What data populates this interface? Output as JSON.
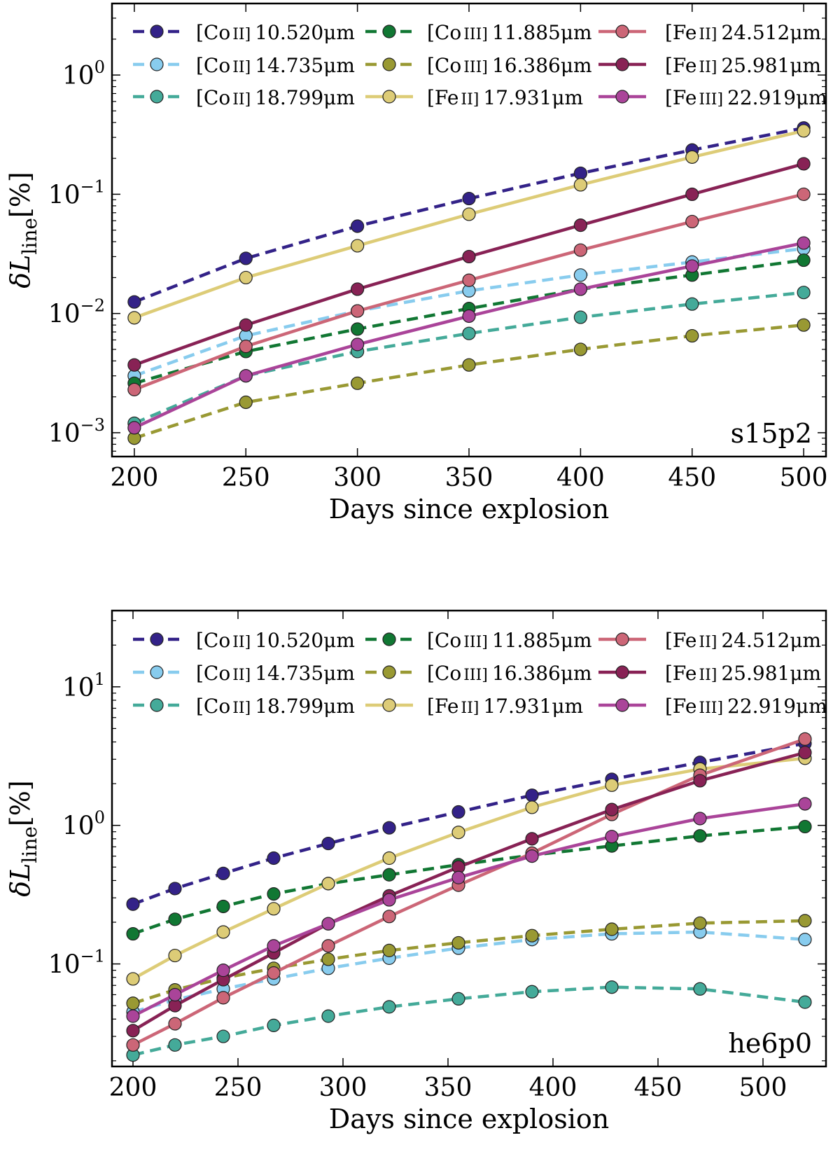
{
  "chart_data": [
    {
      "type": "line",
      "panel_label": "s15p2",
      "xlabel": "Days since explosion",
      "ylabel": {
        "main": "δL",
        "sub": "line",
        "unit": "[%]"
      },
      "xlim": [
        190,
        510
      ],
      "ylim_log10": [
        -3.2,
        0.6
      ],
      "yscale": "log",
      "x_ticks": [
        200,
        250,
        300,
        350,
        400,
        450,
        500
      ],
      "y_ticks_exp": [
        "−3",
        "−2",
        "−1",
        "0"
      ],
      "y_tick_values_log10": [
        -3,
        -2,
        -1,
        0
      ],
      "y_tick_base": "10",
      "legend_loc": "upper",
      "x": [
        200,
        250,
        300,
        350,
        400,
        450,
        500
      ],
      "series": [
        {
          "name": "[Co II] 10.520μm",
          "ion": "[Co",
          "stage": "II]",
          "wave": "10.520μm",
          "color": "#332288",
          "dashed": true,
          "values": [
            0.0125,
            0.029,
            0.054,
            0.092,
            0.15,
            0.235,
            0.36
          ]
        },
        {
          "name": "[Co II] 14.735μm",
          "ion": "[Co",
          "stage": "II]",
          "wave": "14.735μm",
          "color": "#88CCEE",
          "dashed": true,
          "values": [
            0.003,
            0.0065,
            0.0105,
            0.0155,
            0.021,
            0.027,
            0.035
          ]
        },
        {
          "name": "[Co II] 18.799μm",
          "ion": "[Co",
          "stage": "II]",
          "wave": "18.799μm",
          "color": "#44AA99",
          "dashed": true,
          "values": [
            0.0012,
            0.003,
            0.0048,
            0.0068,
            0.0093,
            0.012,
            0.015
          ]
        },
        {
          "name": "[Co III] 11.885μm",
          "ion": "[Co",
          "stage": "III]",
          "wave": "11.885μm",
          "color": "#117733",
          "dashed": true,
          "values": [
            0.0026,
            0.0048,
            0.0074,
            0.011,
            0.016,
            0.021,
            0.028
          ]
        },
        {
          "name": "[Co III] 16.386μm",
          "ion": "[Co",
          "stage": "III]",
          "wave": "16.386μm",
          "color": "#999933",
          "dashed": true,
          "values": [
            0.0009,
            0.0018,
            0.0026,
            0.0037,
            0.005,
            0.0065,
            0.008
          ]
        },
        {
          "name": "[Fe II] 17.931μm",
          "ion": "[Fe",
          "stage": "II]",
          "wave": "17.931μm",
          "color": "#DDCC77",
          "dashed": false,
          "values": [
            0.0092,
            0.02,
            0.037,
            0.068,
            0.12,
            0.205,
            0.34
          ]
        },
        {
          "name": "[Fe II] 24.512μm",
          "ion": "[Fe",
          "stage": "II]",
          "wave": "24.512μm",
          "color": "#CC6677",
          "dashed": false,
          "values": [
            0.0023,
            0.0053,
            0.0105,
            0.019,
            0.034,
            0.059,
            0.1
          ]
        },
        {
          "name": "[Fe II] 25.981μm",
          "ion": "[Fe",
          "stage": "II]",
          "wave": "25.981μm",
          "color": "#882255",
          "dashed": false,
          "values": [
            0.0037,
            0.008,
            0.016,
            0.03,
            0.055,
            0.1,
            0.18
          ]
        },
        {
          "name": "[Fe III] 22.919μm",
          "ion": "[Fe",
          "stage": "III]",
          "wave": "22.919μm",
          "color": "#AA4499",
          "dashed": false,
          "values": [
            0.0011,
            0.003,
            0.0055,
            0.0095,
            0.016,
            0.025,
            0.039
          ]
        }
      ]
    },
    {
      "type": "line",
      "panel_label": "he6p0",
      "xlabel": "Days since explosion",
      "ylabel": {
        "main": "δL",
        "sub": "line",
        "unit": "[%]"
      },
      "xlim": [
        190,
        530
      ],
      "ylim_log10": [
        -1.74,
        1.55
      ],
      "yscale": "log",
      "x_ticks": [
        200,
        250,
        300,
        350,
        400,
        450,
        500
      ],
      "y_ticks_exp": [
        "−1",
        "0",
        "1"
      ],
      "y_tick_values_log10": [
        -1,
        0,
        1
      ],
      "y_tick_base": "10",
      "legend_loc": "upper",
      "x": [
        200,
        220,
        243,
        267,
        293,
        322,
        355,
        390,
        428,
        470,
        520
      ],
      "series": [
        {
          "name": "[Co II] 10.520μm",
          "ion": "[Co",
          "stage": "II]",
          "wave": "10.520μm",
          "color": "#332288",
          "dashed": true,
          "values": [
            0.27,
            0.35,
            0.45,
            0.58,
            0.74,
            0.96,
            1.25,
            1.65,
            2.15,
            2.85,
            3.9
          ]
        },
        {
          "name": "[Co II] 14.735μm",
          "ion": "[Co",
          "stage": "II]",
          "wave": "14.735μm",
          "color": "#88CCEE",
          "dashed": true,
          "values": [
            0.045,
            0.055,
            0.066,
            0.078,
            0.093,
            0.11,
            0.13,
            0.15,
            0.165,
            0.17,
            0.15
          ]
        },
        {
          "name": "[Co II] 18.799μm",
          "ion": "[Co",
          "stage": "II]",
          "wave": "18.799μm",
          "color": "#44AA99",
          "dashed": true,
          "values": [
            0.022,
            0.026,
            0.03,
            0.036,
            0.042,
            0.049,
            0.056,
            0.063,
            0.068,
            0.066,
            0.053
          ]
        },
        {
          "name": "[Co III] 11.885μm",
          "ion": "[Co",
          "stage": "III]",
          "wave": "11.885μm",
          "color": "#117733",
          "dashed": true,
          "values": [
            0.165,
            0.21,
            0.26,
            0.32,
            0.38,
            0.44,
            0.52,
            0.61,
            0.71,
            0.84,
            0.98
          ]
        },
        {
          "name": "[Co III] 16.386μm",
          "ion": "[Co",
          "stage": "III]",
          "wave": "16.386μm",
          "color": "#999933",
          "dashed": true,
          "values": [
            0.052,
            0.065,
            0.079,
            0.093,
            0.108,
            0.125,
            0.142,
            0.16,
            0.178,
            0.197,
            0.205
          ]
        },
        {
          "name": "[Fe II] 17.931μm",
          "ion": "[Fe",
          "stage": "II]",
          "wave": "17.931μm",
          "color": "#DDCC77",
          "dashed": false,
          "values": [
            0.078,
            0.115,
            0.17,
            0.25,
            0.38,
            0.58,
            0.89,
            1.35,
            1.95,
            2.55,
            3.05
          ]
        },
        {
          "name": "[Fe II] 24.512μm",
          "ion": "[Fe",
          "stage": "II]",
          "wave": "24.512μm",
          "color": "#CC6677",
          "dashed": false,
          "values": [
            0.026,
            0.037,
            0.057,
            0.086,
            0.135,
            0.22,
            0.37,
            0.63,
            1.2,
            2.3,
            4.2
          ]
        },
        {
          "name": "[Fe II] 25.981μm",
          "ion": "[Fe",
          "stage": "II]",
          "wave": "25.981μm",
          "color": "#882255",
          "dashed": false,
          "values": [
            0.033,
            0.05,
            0.077,
            0.12,
            0.195,
            0.31,
            0.5,
            0.8,
            1.3,
            2.1,
            3.35
          ]
        },
        {
          "name": "[Fe III] 22.919μm",
          "ion": "[Fe",
          "stage": "III]",
          "wave": "22.919μm",
          "color": "#AA4499",
          "dashed": false,
          "values": [
            0.042,
            0.06,
            0.09,
            0.135,
            0.195,
            0.29,
            0.42,
            0.6,
            0.83,
            1.12,
            1.43
          ]
        }
      ]
    }
  ]
}
